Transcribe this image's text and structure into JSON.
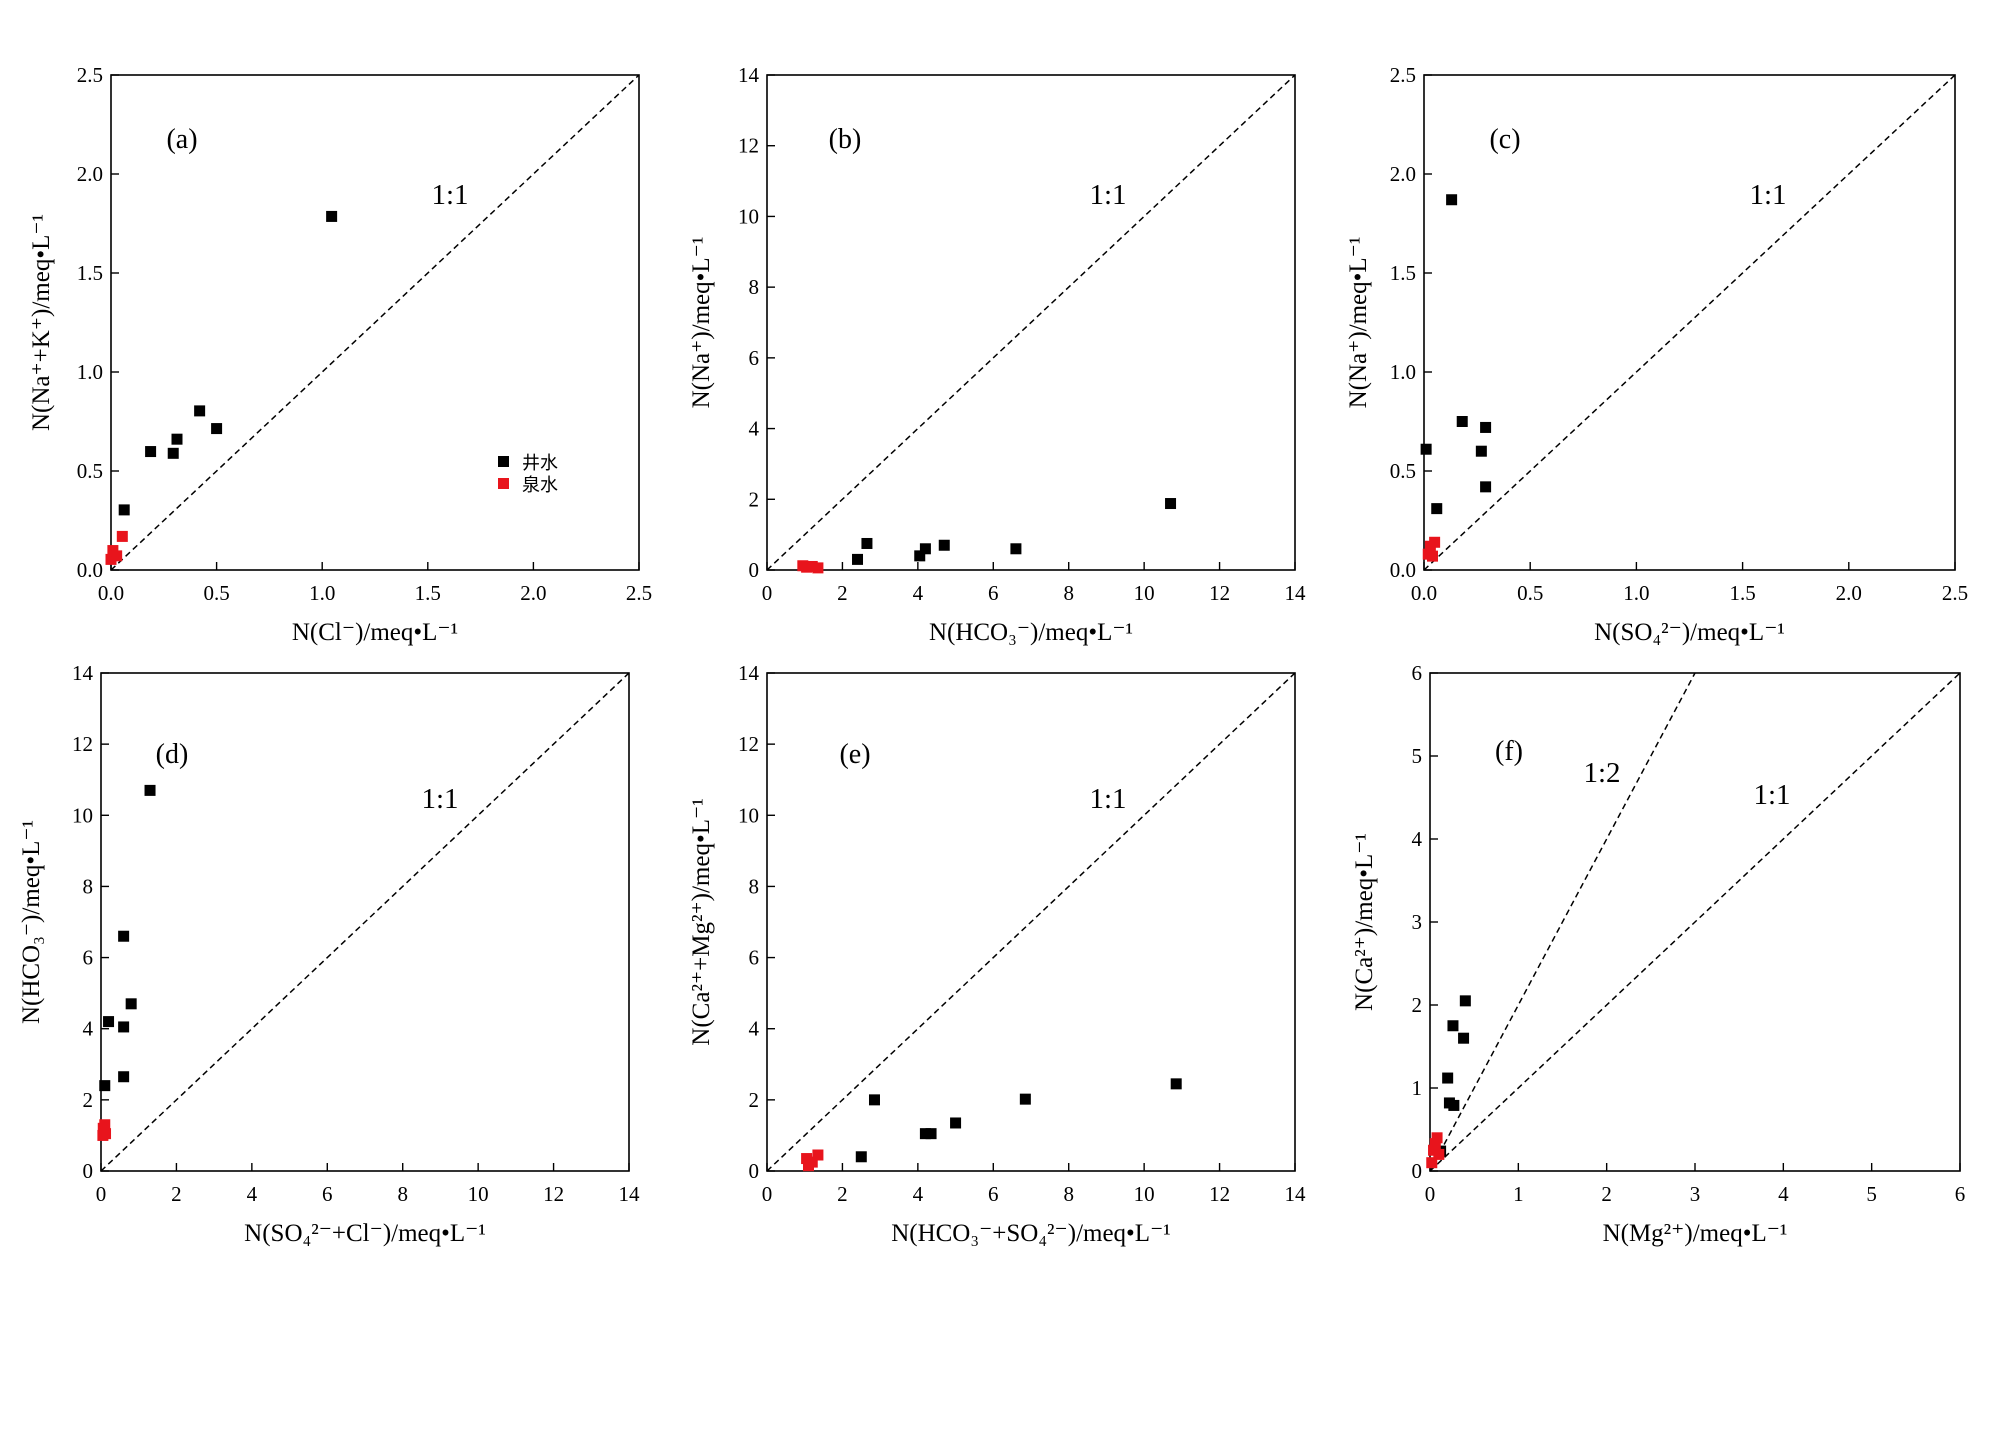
{
  "legend": {
    "well_label": "井水",
    "spring_label": "泉水",
    "well_color": "#000000",
    "spring_color": "#e8141c"
  },
  "chart_data": [
    {
      "panel": "(a)",
      "type": "scatter",
      "xlim": [
        0,
        2.8
      ],
      "ylim": [
        0,
        2.8
      ],
      "xticks": [
        "0.0",
        "0.5",
        "1.0",
        "1.5",
        "2.0",
        "2.5"
      ],
      "yticks": [
        "0.0",
        "0.5",
        "1.0",
        "1.5",
        "2.0",
        "2.5"
      ],
      "xlabel": "N(Cl⁻)/meq•L⁻¹",
      "ylabel": "N(Na⁺+K⁺)/meq•L⁻¹",
      "ref_lines": [
        {
          "label": "1:1",
          "slope": 1
        }
      ],
      "has_legend": true,
      "series": [
        {
          "name": "井水",
          "points": [
            [
              0.07,
              0.34
            ],
            [
              0.21,
              0.67
            ],
            [
              0.33,
              0.66
            ],
            [
              0.35,
              0.74
            ],
            [
              0.47,
              0.9
            ],
            [
              0.56,
              0.8
            ],
            [
              1.17,
              2.0
            ]
          ]
        },
        {
          "name": "泉水",
          "points": [
            [
              0.0,
              0.06
            ],
            [
              0.01,
              0.11
            ],
            [
              0.03,
              0.08
            ],
            [
              0.06,
              0.19
            ]
          ]
        }
      ]
    },
    {
      "panel": "(b)",
      "type": "scatter",
      "xlim": [
        0,
        14
      ],
      "ylim": [
        0,
        14
      ],
      "xticks": [
        "0",
        "2",
        "4",
        "6",
        "8",
        "10",
        "12",
        "14"
      ],
      "yticks": [
        "0",
        "2",
        "4",
        "6",
        "8",
        "10",
        "12",
        "14"
      ],
      "xlabel": "N(HCO₃⁻)/meq•L⁻¹",
      "ylabel": "N(Na⁺)/meq•L⁻¹",
      "ref_lines": [
        {
          "label": "1:1",
          "slope": 1
        }
      ],
      "has_legend": false,
      "series": [
        {
          "name": "井水",
          "points": [
            [
              2.4,
              0.3
            ],
            [
              2.65,
              0.75
            ],
            [
              4.05,
              0.4
            ],
            [
              4.2,
              0.6
            ],
            [
              4.7,
              0.7
            ],
            [
              6.6,
              0.6
            ],
            [
              10.7,
              1.88
            ]
          ]
        },
        {
          "name": "泉水",
          "points": [
            [
              0.95,
              0.12
            ],
            [
              1.05,
              0.08
            ],
            [
              1.2,
              0.1
            ],
            [
              1.35,
              0.06
            ]
          ]
        }
      ]
    },
    {
      "panel": "(c)",
      "type": "scatter",
      "xlim": [
        0,
        2.5
      ],
      "ylim": [
        0,
        2.5
      ],
      "xticks": [
        "0.0",
        "0.5",
        "1.0",
        "1.5",
        "2.0",
        "2.5"
      ],
      "yticks": [
        "0.0",
        "0.5",
        "1.0",
        "1.5",
        "2.0",
        "2.5"
      ],
      "xlabel": "N(SO₄²⁻)/meq•L⁻¹",
      "ylabel": "N(Na⁺)/meq•L⁻¹",
      "ref_lines": [
        {
          "label": "1:1",
          "slope": 1
        }
      ],
      "has_legend": false,
      "series": [
        {
          "name": "井水",
          "points": [
            [
              0.01,
              0.61
            ],
            [
              0.06,
              0.31
            ],
            [
              0.13,
              1.87
            ],
            [
              0.18,
              0.75
            ],
            [
              0.27,
              0.6
            ],
            [
              0.29,
              0.72
            ],
            [
              0.29,
              0.42
            ]
          ]
        },
        {
          "name": "泉水",
          "points": [
            [
              0.02,
              0.08
            ],
            [
              0.03,
              0.12
            ],
            [
              0.04,
              0.07
            ],
            [
              0.05,
              0.14
            ]
          ]
        }
      ]
    },
    {
      "panel": "(d)",
      "type": "scatter",
      "xlim": [
        0,
        14
      ],
      "ylim": [
        0,
        14
      ],
      "xticks": [
        "0",
        "2",
        "4",
        "6",
        "8",
        "10",
        "12",
        "14"
      ],
      "yticks": [
        "0",
        "2",
        "4",
        "6",
        "8",
        "10",
        "12",
        "14"
      ],
      "xlabel": "N(SO₄²⁻+Cl⁻)/meq•L⁻¹",
      "ylabel": "N(HCO₃⁻)/meq•L⁻¹",
      "ref_lines": [
        {
          "label": "1:1",
          "slope": 1
        }
      ],
      "has_legend": false,
      "series": [
        {
          "name": "井水",
          "points": [
            [
              0.1,
              2.4
            ],
            [
              0.2,
              4.2
            ],
            [
              0.6,
              4.05
            ],
            [
              0.6,
              2.65
            ],
            [
              0.6,
              6.6
            ],
            [
              0.8,
              4.7
            ],
            [
              1.3,
              10.7
            ]
          ]
        },
        {
          "name": "泉水",
          "points": [
            [
              0.05,
              1.0
            ],
            [
              0.06,
              1.2
            ],
            [
              0.1,
              1.3
            ],
            [
              0.12,
              1.05
            ]
          ]
        }
      ]
    },
    {
      "panel": "(e)",
      "type": "scatter",
      "xlim": [
        0,
        14
      ],
      "ylim": [
        0,
        14
      ],
      "xticks": [
        "0",
        "2",
        "4",
        "6",
        "8",
        "10",
        "12",
        "14"
      ],
      "yticks": [
        "0",
        "2",
        "4",
        "6",
        "8",
        "10",
        "12",
        "14"
      ],
      "xlabel": "N(HCO₃⁻+SO₄²⁻)/meq•L⁻¹",
      "ylabel": "N(Ca²⁺+Mg²⁺)/meq•L⁻¹",
      "ref_lines": [
        {
          "label": "1:1",
          "slope": 1
        }
      ],
      "has_legend": false,
      "series": [
        {
          "name": "井水",
          "points": [
            [
              2.5,
              0.4
            ],
            [
              2.85,
              2.0
            ],
            [
              4.2,
              1.05
            ],
            [
              4.35,
              1.05
            ],
            [
              5.0,
              1.35
            ],
            [
              6.85,
              2.02
            ],
            [
              10.85,
              2.45
            ]
          ]
        },
        {
          "name": "泉水",
          "points": [
            [
              1.05,
              0.35
            ],
            [
              1.1,
              0.15
            ],
            [
              1.2,
              0.25
            ],
            [
              1.35,
              0.45
            ]
          ]
        }
      ]
    },
    {
      "panel": "(f)",
      "type": "scatter",
      "xlim": [
        0,
        6
      ],
      "ylim": [
        0,
        6
      ],
      "xticks": [
        "0",
        "1",
        "2",
        "3",
        "4",
        "5",
        "6"
      ],
      "yticks": [
        "0",
        "1",
        "2",
        "3",
        "4",
        "5",
        "6"
      ],
      "xlabel": "N(Mg²⁺)/meq•L⁻¹",
      "ylabel": "N(Ca²⁺)/meq•L⁻¹",
      "ref_lines": [
        {
          "label": "1:2",
          "slope": 2
        },
        {
          "label": "1:1",
          "slope": 1
        }
      ],
      "has_legend": false,
      "series": [
        {
          "name": "井水",
          "points": [
            [
              0.12,
              0.24
            ],
            [
              0.2,
              1.12
            ],
            [
              0.22,
              0.82
            ],
            [
              0.27,
              0.79
            ],
            [
              0.26,
              1.75
            ],
            [
              0.38,
              1.6
            ],
            [
              0.4,
              2.05
            ]
          ]
        },
        {
          "name": "泉水",
          "points": [
            [
              0.02,
              0.1
            ],
            [
              0.04,
              0.25
            ],
            [
              0.06,
              0.33
            ],
            [
              0.08,
              0.4
            ],
            [
              0.1,
              0.2
            ]
          ]
        }
      ]
    }
  ]
}
